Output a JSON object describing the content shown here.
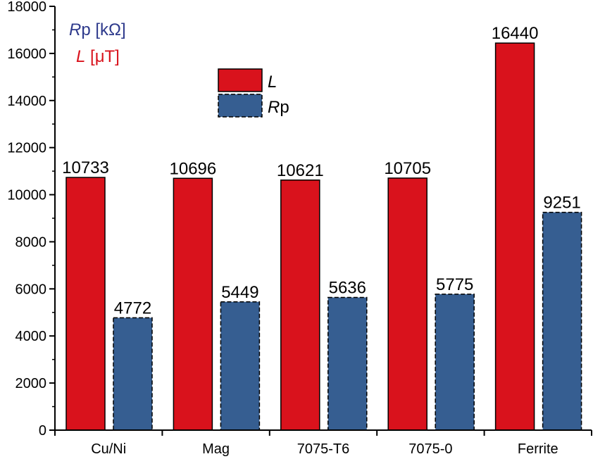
{
  "chart_data": {
    "type": "bar",
    "categories": [
      "Cu/Ni",
      "Mag",
      "7075-T6",
      "7075-0",
      "Ferrite"
    ],
    "series": [
      {
        "name": "L",
        "values": [
          10733,
          10696,
          10621,
          10705,
          16440
        ],
        "color": "#d9121c",
        "border": "solid"
      },
      {
        "name": "Rp",
        "values": [
          4772,
          5449,
          5636,
          5775,
          9251
        ],
        "color": "#365e91",
        "border": "dashed"
      }
    ],
    "data_labels": [
      [
        "10733",
        "10696",
        "10621",
        "10705",
        "16440"
      ],
      [
        "4772",
        "5449",
        "5636",
        "5775",
        "9251"
      ]
    ],
    "ylim": [
      0,
      18000
    ],
    "yticks": [
      0,
      2000,
      4000,
      6000,
      8000,
      10000,
      12000,
      14000,
      16000,
      18000
    ],
    "ytick_labels": [
      "0",
      "2000",
      "4000",
      "6000",
      "8000",
      "10000",
      "12000",
      "14000",
      "16000",
      "18000"
    ],
    "xlabel": "",
    "ylabel": "",
    "grid": false,
    "legend": {
      "position": "top-center",
      "entries": [
        {
          "italic": "L",
          "rest": ""
        },
        {
          "italic": "R",
          "rest": "p"
        }
      ]
    },
    "annotations": [
      {
        "italic": "R",
        "rest": "p [kΩ]",
        "color": "#2e3a8c"
      },
      {
        "italic": "L",
        "rest": " [μT]",
        "color": "#d9121c"
      }
    ]
  }
}
